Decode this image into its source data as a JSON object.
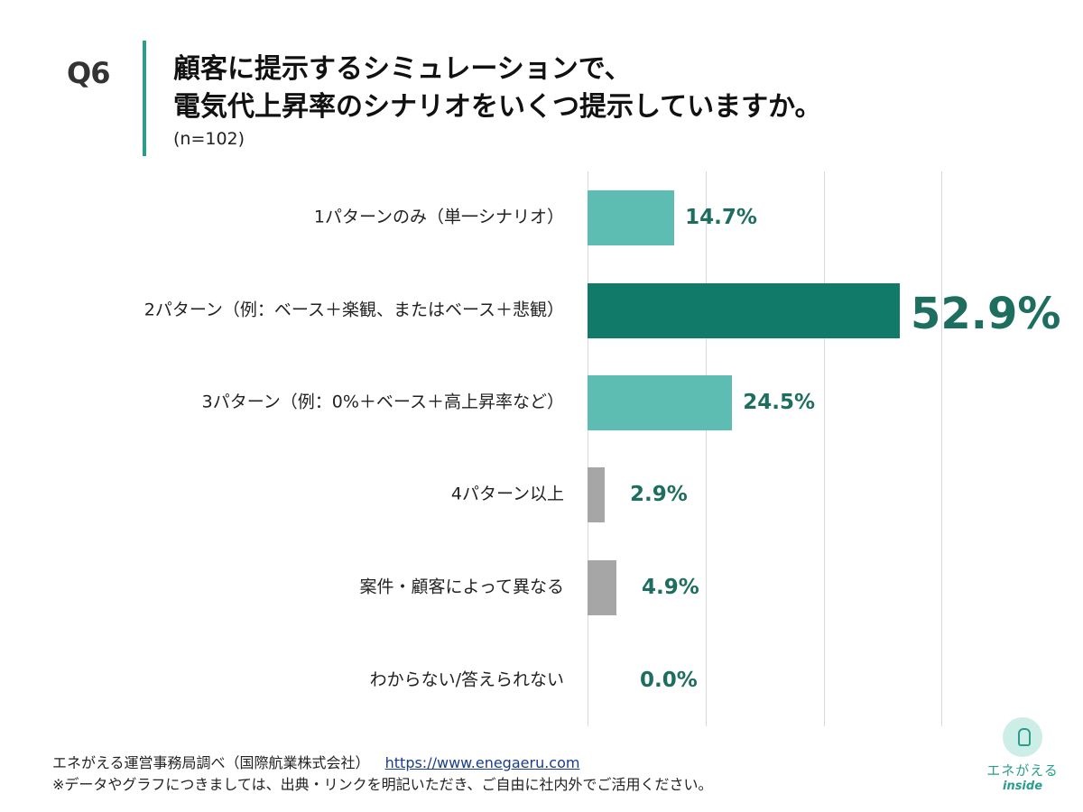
{
  "header": {
    "question": "Q6",
    "title_line1": "顧客に提示するシミュレーションで、",
    "title_line2": "電気代上昇率のシナリオをいくつ提示していますか。",
    "sample": "(n=102)"
  },
  "chart_data": {
    "type": "bar",
    "orientation": "horizontal",
    "categories": [
      "1パターンのみ（単一シナリオ）",
      "2パターン（例：ベース＋楽観、またはベース＋悲観）",
      "3パターン（例：0%＋ベース＋高上昇率など）",
      "4パターン以上",
      "案件・顧客によって異なる",
      "わからない/答えられない"
    ],
    "values": [
      14.7,
      52.9,
      24.5,
      2.9,
      4.9,
      0.0
    ],
    "value_labels": [
      "14.7%",
      "52.9%",
      "24.5%",
      "2.9%",
      "4.9%",
      "0.0%"
    ],
    "bar_colors": [
      "#5dbdb3",
      "#127a68",
      "#5dbdb3",
      "#a6a6a6",
      "#a6a6a6",
      "#a6a6a6"
    ],
    "value_label_color": "#1e6e60",
    "xlim": [
      0,
      60
    ],
    "grid": true
  },
  "footer": {
    "source": "エネがえる運営事務局調べ（国際航業株式会社）",
    "url": "https://www.enegaeru.com",
    "note": "※データやグラフにつきましては、出典・リンクを明記いただき、ご自由に社内外でご活用ください。"
  },
  "logo": {
    "brand": "エネがえる",
    "sub": "inside",
    "icon": "lightbulb-icon"
  }
}
